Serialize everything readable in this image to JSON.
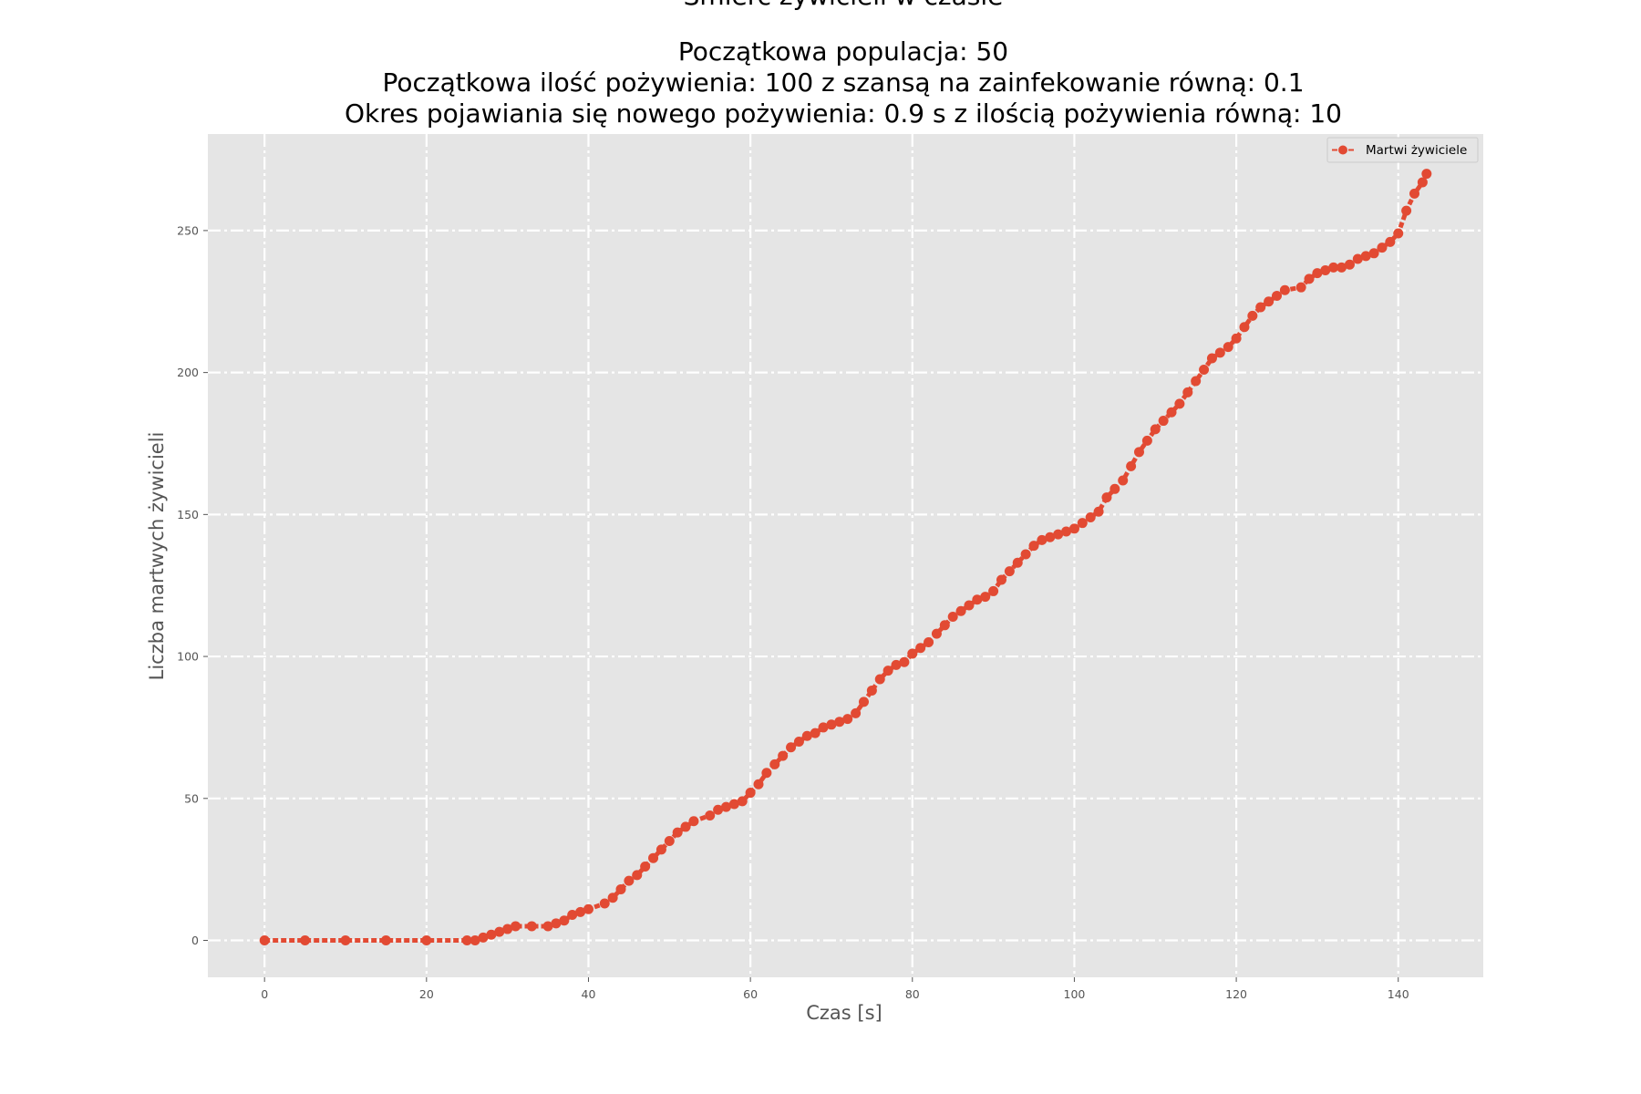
{
  "chart_data": {
    "type": "line",
    "title_lines": [
      "Śmierć żywicieli w czasie",
      "",
      "Początkowa populacja: 50",
      "Początkowa ilość pożywienia: 100 z szansą na zainfekowanie równą: 0.1",
      "Okres pojawiania się nowego pożywienia: 0.9 s z ilością pożywienia równą: 10"
    ],
    "xlabel": "Czas [s]",
    "ylabel": "Liczba martwych żywicieli",
    "xlim": [
      -7,
      150.5
    ],
    "ylim": [
      -13,
      284
    ],
    "xticks": [
      0,
      20,
      40,
      60,
      80,
      100,
      120,
      140
    ],
    "yticks": [
      0,
      50,
      100,
      150,
      200,
      250
    ],
    "grid": true,
    "legend_position": "top-right",
    "colors": {
      "series": "#e24a33",
      "plot_bg": "#e5e5e5",
      "grid": "#ffffff"
    },
    "series": [
      {
        "name": "Martwi żywiciele",
        "marker": "circle",
        "linestyle": "dashed",
        "x": [
          0,
          5,
          10,
          15,
          20,
          25,
          26,
          27,
          28,
          29,
          30,
          31,
          33,
          35,
          36,
          37,
          38,
          39,
          40,
          42,
          43,
          44,
          45,
          46,
          47,
          48,
          49,
          50,
          51,
          52,
          53,
          55,
          56,
          57,
          58,
          59,
          60,
          61,
          62,
          63,
          64,
          65,
          66,
          67,
          68,
          69,
          70,
          71,
          72,
          73,
          74,
          75,
          76,
          77,
          78,
          79,
          80,
          81,
          82,
          83,
          84,
          85,
          86,
          87,
          88,
          89,
          90,
          91,
          92,
          93,
          94,
          95,
          96,
          97,
          98,
          99,
          100,
          101,
          102,
          103,
          104,
          105,
          106,
          107,
          108,
          109,
          110,
          111,
          112,
          113,
          114,
          115,
          116,
          117,
          118,
          119,
          120,
          121,
          122,
          123,
          124,
          125,
          126,
          128,
          129,
          130,
          131,
          132,
          133,
          134,
          135,
          136,
          137,
          138,
          139,
          140,
          141,
          142,
          143,
          143.5
        ],
        "y": [
          0,
          0,
          0,
          0,
          0,
          0,
          0,
          1,
          2,
          3,
          4,
          5,
          5,
          5,
          6,
          7,
          9,
          10,
          11,
          13,
          15,
          18,
          21,
          23,
          26,
          29,
          32,
          35,
          38,
          40,
          42,
          44,
          46,
          47,
          48,
          49,
          52,
          55,
          59,
          62,
          65,
          68,
          70,
          72,
          73,
          75,
          76,
          77,
          78,
          80,
          84,
          88,
          92,
          95,
          97,
          98,
          101,
          103,
          105,
          108,
          111,
          114,
          116,
          118,
          120,
          121,
          123,
          127,
          130,
          133,
          136,
          139,
          141,
          142,
          143,
          144,
          145,
          147,
          149,
          151,
          156,
          159,
          162,
          167,
          172,
          176,
          180,
          183,
          186,
          189,
          193,
          197,
          201,
          205,
          207,
          209,
          212,
          216,
          220,
          223,
          225,
          227,
          229,
          230,
          233,
          235,
          236,
          237,
          237,
          238,
          240,
          241,
          242,
          244,
          246,
          249,
          257,
          263,
          267,
          270
        ]
      }
    ]
  }
}
